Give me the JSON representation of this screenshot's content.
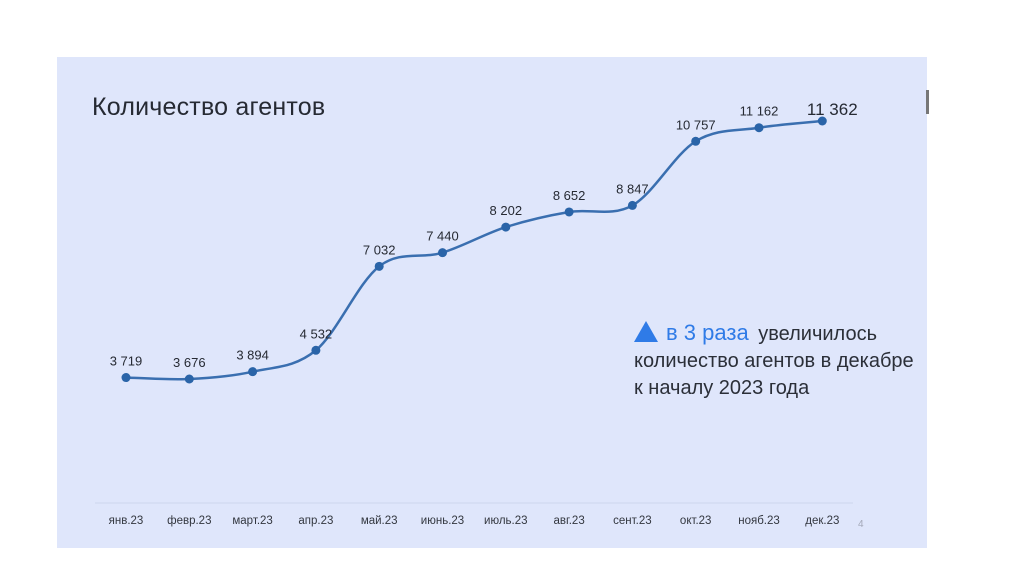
{
  "slide": {
    "title": "Количество агентов",
    "page_number": "4",
    "callout": {
      "accent": "в 3 раза",
      "text": "увеличилось количество агентов в декабре к началу 2023 года"
    }
  },
  "colors": {
    "background": "#dfe6fb",
    "line": "#3a6fb0",
    "point": "#2a64a8",
    "accent": "#2f7be7"
  },
  "chart_data": {
    "type": "line",
    "title": "Количество агентов",
    "categories": [
      "янв.23",
      "февр.23",
      "март.23",
      "апр.23",
      "май.23",
      "июнь.23",
      "июль.23",
      "авг.23",
      "сент.23",
      "окт.23",
      "нояб.23",
      "дек.23"
    ],
    "series": [
      {
        "values": [
          3719,
          3676,
          3894,
          4532,
          7032,
          7440,
          8202,
          8652,
          8847,
          10757,
          11162,
          11362
        ],
        "labels": [
          "3 719",
          "3 676",
          "3 894",
          "4 532",
          "7 032",
          "7 440",
          "8 202",
          "8 652",
          "8 847",
          "10 757",
          "11 162",
          "11 362"
        ]
      }
    ],
    "smooth": true,
    "grid": false,
    "legend": "none"
  }
}
